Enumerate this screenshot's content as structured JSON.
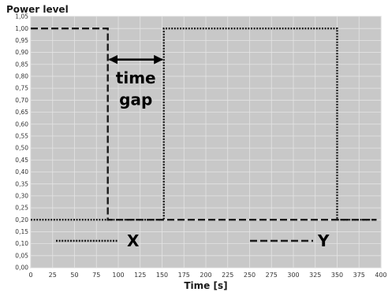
{
  "chart_data": {
    "type": "line",
    "title": "",
    "ylabel": "Power level",
    "xlabel": "Time [s]",
    "xlim": [
      0,
      400
    ],
    "ylim": [
      0,
      1.05
    ],
    "x_ticks": [
      0,
      25,
      50,
      75,
      100,
      125,
      150,
      175,
      200,
      225,
      250,
      275,
      300,
      325,
      350,
      375,
      400
    ],
    "x_tick_labels": [
      "0",
      "25",
      "50",
      "75",
      "100",
      "125",
      "150",
      "175",
      "200",
      "225",
      "250",
      "275",
      "300",
      "325",
      "350",
      "375",
      "400"
    ],
    "y_ticks": [
      0,
      0.05,
      0.1,
      0.15,
      0.2,
      0.25,
      0.3,
      0.35,
      0.4,
      0.45,
      0.5,
      0.55,
      0.6,
      0.65,
      0.7,
      0.75,
      0.8,
      0.85,
      0.9,
      0.95,
      1.0,
      1.05
    ],
    "y_tick_labels": [
      "0,00",
      "0,05",
      "0,10",
      "0,15",
      "0,20",
      "0,25",
      "0,30",
      "0,35",
      "0,40",
      "0,45",
      "0,50",
      "0,55",
      "0,60",
      "0,65",
      "0,70",
      "0,75",
      "0,80",
      "0,85",
      "0,90",
      "0,95",
      "1,00",
      "1,05"
    ],
    "grid": true,
    "legend_position": "bottom",
    "series": [
      {
        "name": "X",
        "style": "dotted",
        "color": "#1a1a1a",
        "points": [
          [
            0,
            0.2
          ],
          [
            152,
            0.2
          ],
          [
            152,
            1.0
          ],
          [
            350,
            1.0
          ],
          [
            350,
            0.2
          ],
          [
            395,
            0.2
          ]
        ]
      },
      {
        "name": "Y",
        "style": "dashed",
        "color": "#1a1a1a",
        "points": [
          [
            0,
            1.0
          ],
          [
            88,
            1.0
          ],
          [
            88,
            0.2
          ],
          [
            395,
            0.2
          ]
        ]
      }
    ],
    "annotation": {
      "text_lines": [
        "time",
        "gap"
      ],
      "arrow_from_x": 88,
      "arrow_to_x": 152,
      "arrow_y": 0.87,
      "text_center_x": 120,
      "text_line_y": [
        0.77,
        0.68
      ]
    },
    "colors": {
      "plot_background": "#c8c8c8",
      "grid": "#e4e4e4",
      "axis_text": "#333333"
    }
  }
}
